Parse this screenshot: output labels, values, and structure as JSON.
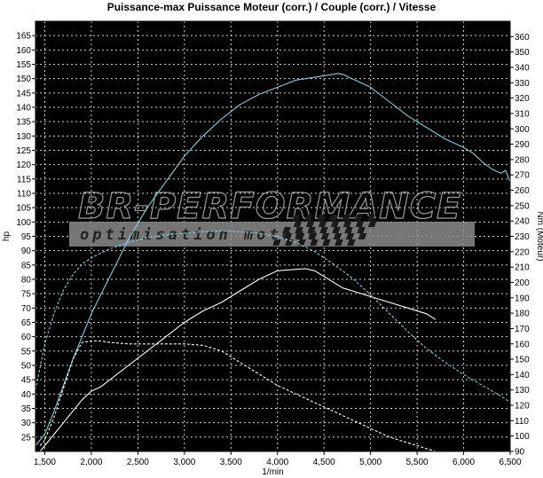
{
  "chart_data": {
    "type": "line",
    "title": "Puissance-max Puissance Moteur (corr.) / Couple (corr.) / Vitesse",
    "xlabel": "1/min",
    "ylabel": "hp",
    "ylabel_right": "Nm (Moteur)",
    "xlim": [
      1400,
      6500
    ],
    "ylim": [
      20,
      170
    ],
    "ylim_right": [
      90,
      370
    ],
    "x_ticks": [
      1500,
      2000,
      2500,
      3000,
      3500,
      4000,
      4500,
      5000,
      5500,
      6000,
      6500
    ],
    "x_tick_labels": [
      "1,500",
      "2,000",
      "2,500",
      "3,000",
      "3,500",
      "4,000",
      "4,500",
      "5,000",
      "5,500",
      "6,000",
      "6,500"
    ],
    "y_ticks": [
      25,
      30,
      35,
      40,
      45,
      50,
      55,
      60,
      65,
      70,
      75,
      80,
      85,
      90,
      95,
      100,
      105,
      110,
      115,
      120,
      125,
      130,
      135,
      140,
      145,
      150,
      155,
      160,
      165
    ],
    "y_ticks_right": [
      90,
      100,
      110,
      120,
      130,
      140,
      150,
      160,
      170,
      180,
      190,
      200,
      210,
      220,
      230,
      240,
      250,
      260,
      270,
      280,
      290,
      300,
      310,
      320,
      330,
      340,
      350,
      360
    ],
    "grid": true,
    "background": "#000000",
    "watermark": {
      "main": "BR-PERFORMANCE",
      "sub": "optimisation moteur"
    },
    "series": [
      {
        "axis": "left",
        "color": "#7fd0e0",
        "style": "solid",
        "x": [
          1400,
          1500,
          1600,
          1700,
          1800,
          1900,
          2000,
          2200,
          2400,
          2600,
          2800,
          3000,
          3200,
          3400,
          3600,
          3800,
          4000,
          4200,
          4400,
          4500,
          4600,
          4650,
          4700,
          4800,
          5000,
          5200,
          5400,
          5600,
          5800,
          6000,
          6100,
          6200,
          6300,
          6400,
          6450,
          6500
        ],
        "y": [
          22,
          26,
          34,
          43,
          52,
          60,
          68,
          81,
          94,
          105,
          114,
          123,
          130,
          136,
          141,
          144.5,
          147,
          149.5,
          150.5,
          151,
          151.5,
          151.8,
          151.5,
          150,
          147,
          142,
          137,
          133,
          129,
          126,
          124,
          121,
          118.5,
          117,
          118,
          114
        ]
      },
      {
        "axis": "left",
        "color": "#ffffff",
        "style": "solid",
        "x": [
          1450,
          1500,
          1600,
          1700,
          1800,
          1900,
          2000,
          2100,
          2200,
          2400,
          2600,
          2800,
          3000,
          3200,
          3400,
          3600,
          3800,
          4000,
          4200,
          4300,
          4400,
          4500,
          4600,
          4700,
          4800,
          5000,
          5200,
          5400,
          5600,
          5700
        ],
        "y": [
          20,
          22,
          26,
          30,
          34,
          38,
          41,
          42.5,
          45,
          50,
          55,
          60,
          65,
          69,
          72,
          76,
          80,
          83,
          83.5,
          83.7,
          83,
          81,
          79,
          77,
          76,
          74,
          72,
          70,
          68,
          66
        ]
      },
      {
        "axis": "right",
        "color": "#7fd0e0",
        "style": "dashed",
        "x": [
          1400,
          1500,
          1600,
          1700,
          1800,
          1900,
          2000,
          2100,
          2200,
          2400,
          2600,
          2800,
          3000,
          3200,
          3400,
          3600,
          3800,
          4000,
          4200,
          4400,
          4600,
          4800,
          5000,
          5200,
          5400,
          5600,
          5800,
          6000,
          6200,
          6400,
          6500
        ],
        "y": [
          130,
          160,
          180,
          195,
          205,
          212,
          216,
          219,
          222,
          226,
          229,
          231,
          232,
          233,
          233.5,
          233,
          232,
          230,
          226,
          220,
          212,
          203,
          192,
          180,
          168,
          157,
          148,
          140,
          133,
          126,
          122
        ]
      },
      {
        "axis": "left",
        "color": "#ffffff",
        "style": "dashed",
        "x": [
          1450,
          1500,
          1600,
          1700,
          1800,
          1900,
          2000,
          2100,
          2200,
          2400,
          2600,
          2800,
          3000,
          3200,
          3400,
          3600,
          3800,
          4000,
          4200,
          4400,
          4600,
          4800,
          5000,
          5200,
          5400,
          5600,
          5700
        ],
        "y": [
          22,
          24,
          32,
          42,
          52,
          58,
          58.5,
          58.5,
          58,
          57.5,
          57.5,
          57.5,
          57.5,
          57,
          55,
          51,
          47,
          43,
          40,
          37,
          34,
          31,
          28,
          25,
          23,
          21,
          20
        ]
      }
    ]
  }
}
